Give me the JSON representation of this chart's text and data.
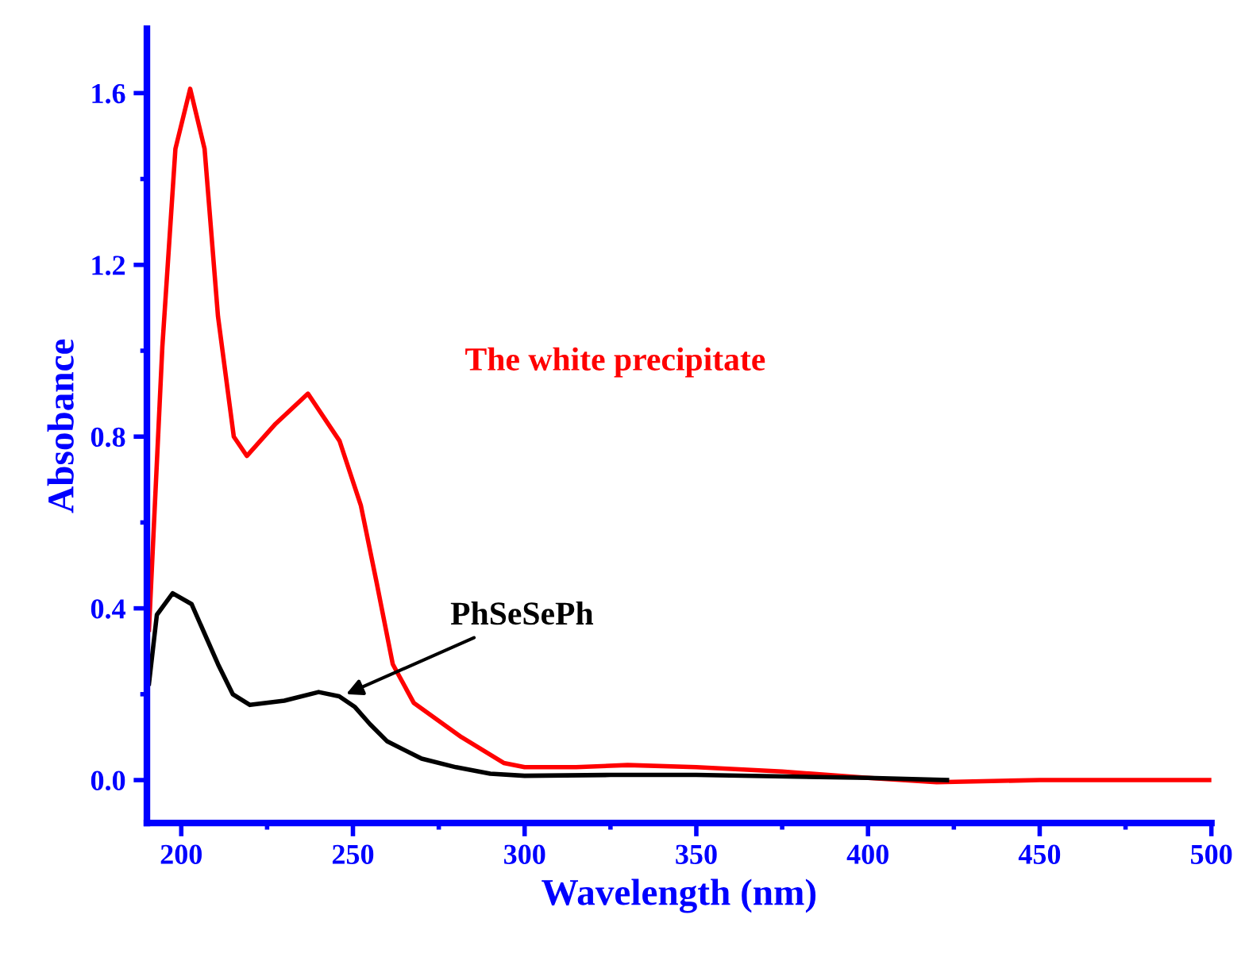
{
  "chart_data": {
    "type": "line",
    "xlabel": "Wavelength (nm)",
    "ylabel": "Absobance",
    "xlim": [
      190,
      500
    ],
    "ylim": [
      -0.1,
      1.75
    ],
    "xticks": [
      200,
      250,
      300,
      350,
      400,
      450,
      500
    ],
    "yticks": [
      {
        "value": 0,
        "label": "0.0"
      },
      0.4,
      0.8,
      1.2,
      1.6
    ],
    "grid": false,
    "legend": false,
    "marker": "none",
    "line_style": "solid",
    "series": [
      {
        "name": "The white precipitate",
        "color": "#ff0000",
        "x": [
          190.6,
          194.5,
          198.3,
          202.6,
          206.8,
          210.7,
          215.3,
          219.1,
          227.5,
          236.9,
          246.1,
          252.3,
          256.9,
          261.6,
          267.7,
          281.6,
          293.9,
          300,
          315,
          330,
          350,
          375,
          400,
          420,
          450,
          500
        ],
        "values": [
          0.35,
          1.01,
          1.47,
          1.61,
          1.47,
          1.08,
          0.8,
          0.755,
          0.83,
          0.9,
          0.79,
          0.64,
          0.46,
          0.27,
          0.18,
          0.1,
          0.04,
          0.03,
          0.03,
          0.035,
          0.03,
          0.02,
          0.005,
          -0.005,
          0.0,
          0.0
        ]
      },
      {
        "color": "#000000",
        "x": [
          190.6,
          192.9,
          197.5,
          203,
          210.7,
          215,
          220,
          230,
          240,
          246,
          250.6,
          255,
          260,
          270,
          280,
          290,
          300,
          325,
          350,
          400,
          423
        ],
        "values": [
          0.225,
          0.385,
          0.435,
          0.41,
          0.27,
          0.2,
          0.175,
          0.185,
          0.205,
          0.195,
          0.17,
          0.13,
          0.09,
          0.05,
          0.03,
          0.015,
          0.01,
          0.012,
          0.012,
          0.005,
          0.0
        ]
      }
    ],
    "annotations": [
      {
        "text": "PhSeSePh",
        "x": 248,
        "y": 0.2
      }
    ]
  }
}
